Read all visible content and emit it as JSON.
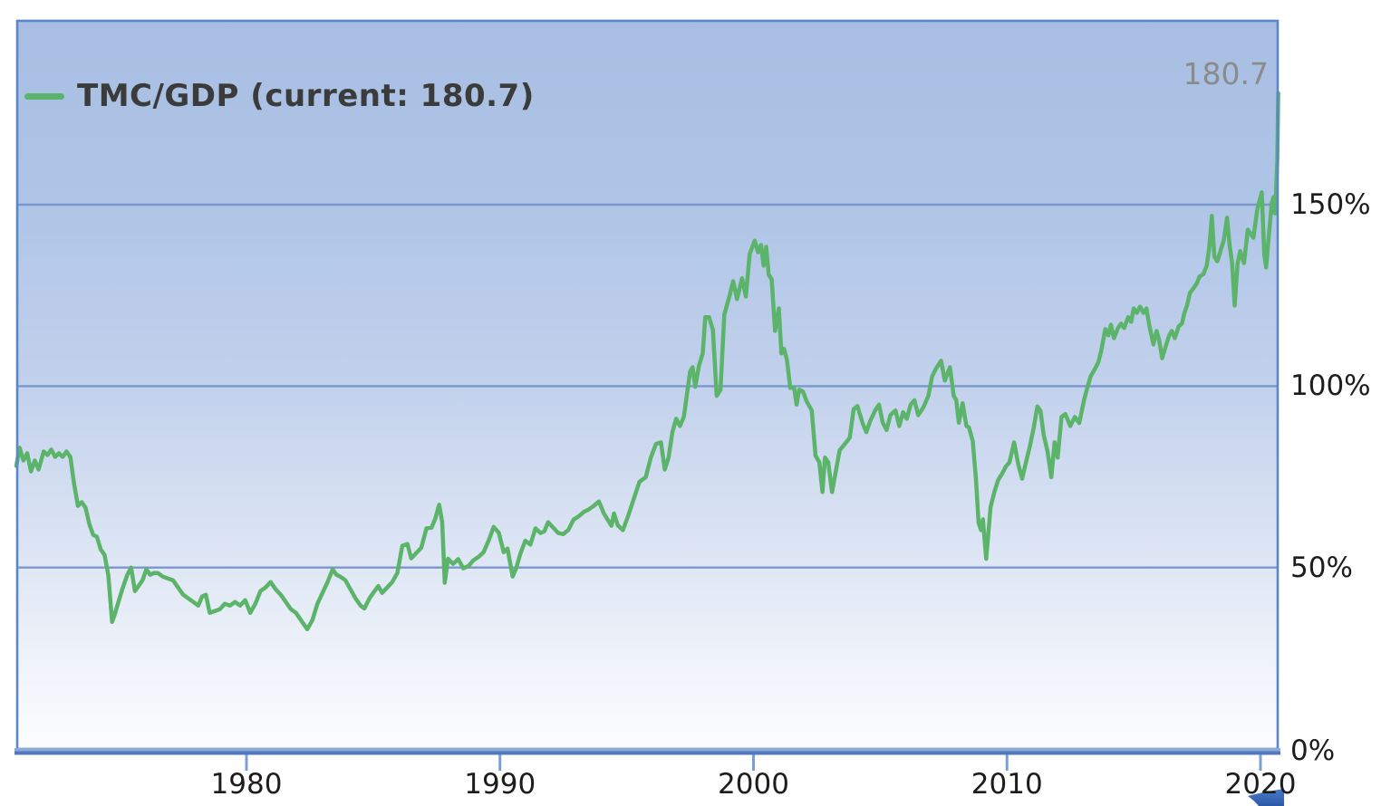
{
  "legend": {
    "label": "TMC/GDP (current: 180.7)"
  },
  "annotation": {
    "current_value": "180.7"
  },
  "y_axis": {
    "labels": [
      "150%",
      "100%",
      "50%",
      "0%"
    ],
    "ticks": [
      150,
      100,
      50,
      0
    ],
    "unit": "%"
  },
  "x_axis": {
    "labels": [
      "1980",
      "1990",
      "2000",
      "2010",
      "2020"
    ],
    "ticks": [
      1980,
      1990,
      2000,
      2010,
      2020
    ]
  },
  "colors": {
    "line": "#5bb469",
    "grid": "#7b96ce",
    "frame": "#5d86c8",
    "axis_bar_light": "#8ba9db",
    "axis_bar_dark": "#5377bb",
    "bg_top": "#a7bee2",
    "bg_bottom": "#fdfdfe",
    "legend_text": "#3b3b3b",
    "annotation_text": "#8b8b8b",
    "cursor": "#3e6dbf"
  },
  "chart_data": {
    "type": "line",
    "title": "",
    "series_name": "TMC/GDP",
    "current_value": 180.7,
    "xlabel": "",
    "ylabel": "",
    "x_range": [
      1970.9,
      2020.72
    ],
    "ylim": [
      0,
      201
    ],
    "grid": "horizontal",
    "legend_position": "top-left",
    "points": [
      [
        1970.92,
        78
      ],
      [
        1971.05,
        83
      ],
      [
        1971.2,
        79.5
      ],
      [
        1971.35,
        81.5
      ],
      [
        1971.5,
        76.5
      ],
      [
        1971.65,
        79.5
      ],
      [
        1971.8,
        77
      ],
      [
        1972.0,
        82
      ],
      [
        1972.15,
        81
      ],
      [
        1972.3,
        82.5
      ],
      [
        1972.45,
        80.5
      ],
      [
        1972.6,
        81.5
      ],
      [
        1972.75,
        80.5
      ],
      [
        1972.9,
        82
      ],
      [
        1973.05,
        80.5
      ],
      [
        1973.2,
        73
      ],
      [
        1973.35,
        67
      ],
      [
        1973.5,
        68
      ],
      [
        1973.65,
        66.5
      ],
      [
        1973.8,
        62
      ],
      [
        1973.95,
        59
      ],
      [
        1974.1,
        58.5
      ],
      [
        1974.25,
        55
      ],
      [
        1974.4,
        53.5
      ],
      [
        1974.55,
        48
      ],
      [
        1974.7,
        35
      ],
      [
        1974.8,
        37
      ],
      [
        1974.95,
        40.5
      ],
      [
        1975.1,
        44
      ],
      [
        1975.3,
        48
      ],
      [
        1975.45,
        50
      ],
      [
        1975.6,
        43.5
      ],
      [
        1975.75,
        45
      ],
      [
        1975.9,
        46.5
      ],
      [
        1976.05,
        49.5
      ],
      [
        1976.2,
        48
      ],
      [
        1976.35,
        48.5
      ],
      [
        1976.5,
        48.5
      ],
      [
        1976.7,
        47.5
      ],
      [
        1976.9,
        47
      ],
      [
        1977.1,
        46.5
      ],
      [
        1977.3,
        44.5
      ],
      [
        1977.5,
        42.5
      ],
      [
        1977.7,
        41.5
      ],
      [
        1977.9,
        40.5
      ],
      [
        1978.1,
        39.5
      ],
      [
        1978.25,
        42
      ],
      [
        1978.4,
        42.5
      ],
      [
        1978.55,
        37.5
      ],
      [
        1978.75,
        38
      ],
      [
        1978.95,
        38.5
      ],
      [
        1979.15,
        40
      ],
      [
        1979.35,
        39.5
      ],
      [
        1979.55,
        40.5
      ],
      [
        1979.75,
        39.5
      ],
      [
        1979.95,
        41
      ],
      [
        1980.15,
        37.5
      ],
      [
        1980.35,
        40
      ],
      [
        1980.55,
        43.5
      ],
      [
        1980.75,
        44.5
      ],
      [
        1980.95,
        46
      ],
      [
        1981.15,
        44
      ],
      [
        1981.35,
        42.5
      ],
      [
        1981.55,
        40.5
      ],
      [
        1981.75,
        38.5
      ],
      [
        1981.95,
        37.5
      ],
      [
        1982.15,
        35.5
      ],
      [
        1982.4,
        33
      ],
      [
        1982.6,
        35.5
      ],
      [
        1982.8,
        40
      ],
      [
        1983.0,
        43
      ],
      [
        1983.2,
        46
      ],
      [
        1983.4,
        49.5
      ],
      [
        1983.55,
        48
      ],
      [
        1983.7,
        47.5
      ],
      [
        1983.9,
        46.5
      ],
      [
        1984.1,
        44
      ],
      [
        1984.3,
        41.5
      ],
      [
        1984.5,
        39.5
      ],
      [
        1984.65,
        38.7
      ],
      [
        1984.85,
        41.5
      ],
      [
        1985.05,
        43.5
      ],
      [
        1985.2,
        44.9
      ],
      [
        1985.35,
        43
      ],
      [
        1985.55,
        44.5
      ],
      [
        1985.75,
        46
      ],
      [
        1985.95,
        48.5
      ],
      [
        1986.15,
        56
      ],
      [
        1986.35,
        56.5
      ],
      [
        1986.5,
        52.5
      ],
      [
        1986.7,
        54
      ],
      [
        1986.9,
        55.5
      ],
      [
        1987.1,
        60.8
      ],
      [
        1987.3,
        61
      ],
      [
        1987.45,
        63.5
      ],
      [
        1987.6,
        67.3
      ],
      [
        1987.72,
        62.5
      ],
      [
        1987.82,
        45.8
      ],
      [
        1987.95,
        52.4
      ],
      [
        1988.15,
        51
      ],
      [
        1988.35,
        52.3
      ],
      [
        1988.55,
        49.8
      ],
      [
        1988.75,
        50.4
      ],
      [
        1988.95,
        52
      ],
      [
        1989.15,
        52.9
      ],
      [
        1989.35,
        54.2
      ],
      [
        1989.55,
        57.4
      ],
      [
        1989.75,
        61.2
      ],
      [
        1989.95,
        59.6
      ],
      [
        1990.15,
        54.2
      ],
      [
        1990.3,
        55.2
      ],
      [
        1990.5,
        47.5
      ],
      [
        1990.65,
        50
      ],
      [
        1990.8,
        53.7
      ],
      [
        1991.0,
        57.4
      ],
      [
        1991.2,
        56.3
      ],
      [
        1991.4,
        60.8
      ],
      [
        1991.6,
        59.5
      ],
      [
        1991.75,
        60
      ],
      [
        1991.9,
        62.5
      ],
      [
        1992.1,
        61
      ],
      [
        1992.3,
        59.5
      ],
      [
        1992.5,
        59.2
      ],
      [
        1992.7,
        60.4
      ],
      [
        1992.9,
        63.2
      ],
      [
        1993.1,
        64.1
      ],
      [
        1993.3,
        65.3
      ],
      [
        1993.5,
        66
      ],
      [
        1993.7,
        67
      ],
      [
        1993.9,
        68.2
      ],
      [
        1994.1,
        64.9
      ],
      [
        1994.25,
        63.2
      ],
      [
        1994.4,
        61.5
      ],
      [
        1994.5,
        64.9
      ],
      [
        1994.65,
        61.6
      ],
      [
        1994.85,
        60.3
      ],
      [
        1995.05,
        64.1
      ],
      [
        1995.25,
        68.3
      ],
      [
        1995.5,
        73.6
      ],
      [
        1995.75,
        74.9
      ],
      [
        1995.95,
        80.3
      ],
      [
        1996.15,
        84
      ],
      [
        1996.35,
        84.5
      ],
      [
        1996.5,
        77
      ],
      [
        1996.65,
        80.3
      ],
      [
        1996.8,
        87.3
      ],
      [
        1996.95,
        91
      ],
      [
        1997.1,
        89
      ],
      [
        1997.25,
        91.5
      ],
      [
        1997.4,
        99
      ],
      [
        1997.5,
        104
      ],
      [
        1997.6,
        105.2
      ],
      [
        1997.7,
        99.8
      ],
      [
        1997.85,
        105.7
      ],
      [
        1998.0,
        109
      ],
      [
        1998.1,
        119
      ],
      [
        1998.25,
        119
      ],
      [
        1998.4,
        115.5
      ],
      [
        1998.55,
        97.3
      ],
      [
        1998.7,
        99
      ],
      [
        1998.85,
        119.7
      ],
      [
        1999.05,
        124.7
      ],
      [
        1999.2,
        128.9
      ],
      [
        1999.35,
        124
      ],
      [
        1999.55,
        129.7
      ],
      [
        1999.7,
        124.7
      ],
      [
        1999.85,
        136.4
      ],
      [
        2000.05,
        140.1
      ],
      [
        2000.18,
        136.9
      ],
      [
        2000.3,
        138.9
      ],
      [
        2000.4,
        133.2
      ],
      [
        2000.5,
        138.4
      ],
      [
        2000.6,
        130.7
      ],
      [
        2000.72,
        129.4
      ],
      [
        2000.85,
        115.2
      ],
      [
        2001.0,
        121.4
      ],
      [
        2001.1,
        109
      ],
      [
        2001.2,
        110.3
      ],
      [
        2001.32,
        107.3
      ],
      [
        2001.45,
        99.5
      ],
      [
        2001.6,
        99.5
      ],
      [
        2001.7,
        94.9
      ],
      [
        2001.8,
        99
      ],
      [
        2001.95,
        98.5
      ],
      [
        2002.1,
        95.8
      ],
      [
        2002.3,
        93.3
      ],
      [
        2002.45,
        80.8
      ],
      [
        2002.6,
        79
      ],
      [
        2002.72,
        70.8
      ],
      [
        2002.82,
        80.3
      ],
      [
        2002.95,
        79
      ],
      [
        2003.1,
        70.8
      ],
      [
        2003.25,
        76.6
      ],
      [
        2003.4,
        82.3
      ],
      [
        2003.6,
        84
      ],
      [
        2003.8,
        85.8
      ],
      [
        2003.95,
        93.6
      ],
      [
        2004.1,
        94.5
      ],
      [
        2004.3,
        89.9
      ],
      [
        2004.45,
        87.3
      ],
      [
        2004.6,
        90.3
      ],
      [
        2004.8,
        93.3
      ],
      [
        2004.95,
        94.9
      ],
      [
        2005.1,
        89.9
      ],
      [
        2005.25,
        87.9
      ],
      [
        2005.4,
        92
      ],
      [
        2005.6,
        93.3
      ],
      [
        2005.75,
        89
      ],
      [
        2005.9,
        92.8
      ],
      [
        2006.05,
        91
      ],
      [
        2006.2,
        94.9
      ],
      [
        2006.35,
        96.1
      ],
      [
        2006.5,
        92
      ],
      [
        2006.7,
        94.1
      ],
      [
        2006.9,
        97.3
      ],
      [
        2007.05,
        102.7
      ],
      [
        2007.2,
        104.8
      ],
      [
        2007.4,
        107
      ],
      [
        2007.55,
        101.5
      ],
      [
        2007.75,
        105.2
      ],
      [
        2007.9,
        97.3
      ],
      [
        2008.0,
        96.1
      ],
      [
        2008.1,
        89.9
      ],
      [
        2008.25,
        95.3
      ],
      [
        2008.4,
        89
      ],
      [
        2008.5,
        88.6
      ],
      [
        2008.65,
        84.8
      ],
      [
        2008.78,
        74.1
      ],
      [
        2008.88,
        62.3
      ],
      [
        2008.98,
        60.3
      ],
      [
        2009.05,
        63.3
      ],
      [
        2009.18,
        52.4
      ],
      [
        2009.35,
        66.6
      ],
      [
        2009.5,
        70.8
      ],
      [
        2009.65,
        74.1
      ],
      [
        2009.8,
        75.8
      ],
      [
        2009.95,
        77.8
      ],
      [
        2010.1,
        79
      ],
      [
        2010.28,
        84.5
      ],
      [
        2010.45,
        78.3
      ],
      [
        2010.6,
        74.5
      ],
      [
        2010.75,
        79
      ],
      [
        2010.9,
        83.3
      ],
      [
        2011.05,
        88.3
      ],
      [
        2011.2,
        94.4
      ],
      [
        2011.32,
        93.2
      ],
      [
        2011.45,
        86.5
      ],
      [
        2011.6,
        82
      ],
      [
        2011.75,
        74.9
      ],
      [
        2011.88,
        84.5
      ],
      [
        2012.0,
        80.3
      ],
      [
        2012.15,
        91.5
      ],
      [
        2012.3,
        92.3
      ],
      [
        2012.5,
        89
      ],
      [
        2012.68,
        91.5
      ],
      [
        2012.85,
        89.8
      ],
      [
        2013.05,
        96.5
      ],
      [
        2013.18,
        99.8
      ],
      [
        2013.3,
        102.7
      ],
      [
        2013.45,
        104.5
      ],
      [
        2013.6,
        106.5
      ],
      [
        2013.72,
        109.8
      ],
      [
        2013.88,
        115.7
      ],
      [
        2014.0,
        114
      ],
      [
        2014.1,
        116.9
      ],
      [
        2014.22,
        113.2
      ],
      [
        2014.38,
        116
      ],
      [
        2014.5,
        117.2
      ],
      [
        2014.62,
        116
      ],
      [
        2014.78,
        119
      ],
      [
        2014.9,
        117.7
      ],
      [
        2015.0,
        121.4
      ],
      [
        2015.12,
        120.2
      ],
      [
        2015.25,
        121.9
      ],
      [
        2015.38,
        120.2
      ],
      [
        2015.5,
        121.4
      ],
      [
        2015.62,
        116.5
      ],
      [
        2015.78,
        111.5
      ],
      [
        2015.9,
        115.2
      ],
      [
        2016.0,
        112.7
      ],
      [
        2016.12,
        107.7
      ],
      [
        2016.25,
        110.7
      ],
      [
        2016.4,
        114
      ],
      [
        2016.5,
        115.2
      ],
      [
        2016.62,
        113.2
      ],
      [
        2016.78,
        116.5
      ],
      [
        2016.9,
        117.2
      ],
      [
        2017.0,
        120.2
      ],
      [
        2017.1,
        122.2
      ],
      [
        2017.22,
        125.7
      ],
      [
        2017.35,
        126.9
      ],
      [
        2017.48,
        128.2
      ],
      [
        2017.6,
        130.2
      ],
      [
        2017.75,
        130.9
      ],
      [
        2017.88,
        133.2
      ],
      [
        2017.98,
        138.2
      ],
      [
        2018.08,
        146.9
      ],
      [
        2018.18,
        135.7
      ],
      [
        2018.3,
        134.4
      ],
      [
        2018.42,
        137.2
      ],
      [
        2018.55,
        140.1
      ],
      [
        2018.68,
        146.4
      ],
      [
        2018.78,
        138.9
      ],
      [
        2018.88,
        133.9
      ],
      [
        2018.98,
        122.2
      ],
      [
        2019.1,
        133.9
      ],
      [
        2019.2,
        137.2
      ],
      [
        2019.35,
        133.9
      ],
      [
        2019.5,
        143.1
      ],
      [
        2019.6,
        142.1
      ],
      [
        2019.72,
        140.9
      ],
      [
        2019.88,
        148.9
      ],
      [
        2020.05,
        153.4
      ],
      [
        2020.15,
        136.4
      ],
      [
        2020.22,
        132.7
      ],
      [
        2020.35,
        143.1
      ],
      [
        2020.45,
        150.6
      ],
      [
        2020.52,
        152.1
      ],
      [
        2020.58,
        147.6
      ],
      [
        2020.63,
        156.4
      ],
      [
        2020.66,
        162
      ],
      [
        2020.68,
        170
      ],
      [
        2020.7,
        180.7
      ]
    ]
  }
}
